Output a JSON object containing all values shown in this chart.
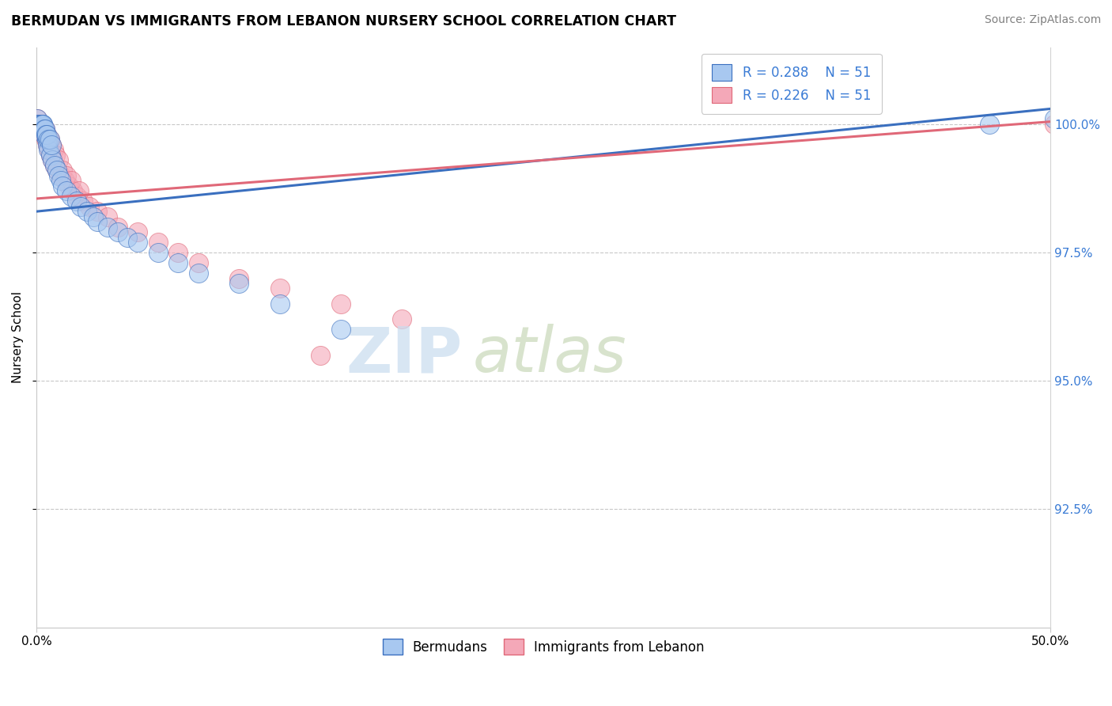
{
  "title": "BERMUDAN VS IMMIGRANTS FROM LEBANON NURSERY SCHOOL CORRELATION CHART",
  "source": "Source: ZipAtlas.com",
  "ylabel": "Nursery School",
  "ytick_values": [
    92.5,
    95.0,
    97.5,
    100.0
  ],
  "xmin": 0.0,
  "xmax": 50.0,
  "ymin": 90.2,
  "ymax": 101.5,
  "legend_r_blue": "R = 0.288",
  "legend_n_blue": "N = 51",
  "legend_r_pink": "R = 0.226",
  "legend_n_pink": "N = 51",
  "label_blue": "Bermudans",
  "label_pink": "Immigrants from Lebanon",
  "blue_color": "#A8C8F0",
  "pink_color": "#F4A8B8",
  "blue_line_color": "#3A6FBF",
  "pink_line_color": "#E06878",
  "blue_line_x0": 0.0,
  "blue_line_y0": 98.3,
  "blue_line_x1": 50.0,
  "blue_line_y1": 100.3,
  "pink_line_x0": 0.0,
  "pink_line_y0": 98.55,
  "pink_line_x1": 50.0,
  "pink_line_y1": 100.05,
  "blue_x": [
    0.1,
    0.15,
    0.2,
    0.25,
    0.3,
    0.35,
    0.4,
    0.45,
    0.5,
    0.55,
    0.6,
    0.7,
    0.8,
    0.9,
    1.0,
    1.1,
    1.2,
    1.3,
    1.5,
    1.7,
    2.0,
    2.2,
    2.5,
    2.8,
    3.0,
    3.5,
    4.0,
    4.5,
    5.0,
    6.0,
    7.0,
    8.0,
    10.0,
    12.0,
    15.0,
    0.05,
    0.08,
    0.12,
    0.18,
    0.22,
    0.28,
    0.32,
    0.38,
    0.42,
    0.48,
    0.52,
    0.58,
    0.65,
    0.75,
    47.0,
    50.2
  ],
  "blue_y": [
    100.0,
    100.0,
    100.0,
    100.0,
    100.0,
    99.9,
    99.8,
    99.8,
    99.7,
    99.6,
    99.5,
    99.4,
    99.3,
    99.2,
    99.1,
    99.0,
    98.9,
    98.8,
    98.7,
    98.6,
    98.5,
    98.4,
    98.3,
    98.2,
    98.1,
    98.0,
    97.9,
    97.8,
    97.7,
    97.5,
    97.3,
    97.1,
    96.9,
    96.5,
    96.0,
    100.1,
    100.0,
    100.0,
    100.0,
    100.0,
    100.0,
    100.0,
    99.9,
    99.9,
    99.8,
    99.8,
    99.7,
    99.7,
    99.6,
    100.0,
    100.1
  ],
  "pink_x": [
    0.1,
    0.18,
    0.25,
    0.32,
    0.4,
    0.48,
    0.55,
    0.62,
    0.7,
    0.8,
    0.9,
    1.0,
    1.2,
    1.4,
    1.6,
    1.8,
    2.0,
    2.3,
    2.6,
    3.0,
    3.5,
    4.0,
    5.0,
    6.0,
    7.0,
    8.0,
    10.0,
    12.0,
    15.0,
    18.0,
    0.05,
    0.08,
    0.12,
    0.15,
    0.22,
    0.28,
    0.35,
    0.42,
    0.52,
    0.58,
    0.65,
    0.75,
    0.85,
    0.95,
    1.1,
    1.3,
    1.5,
    1.7,
    2.1,
    50.2,
    14.0
  ],
  "pink_y": [
    100.0,
    100.0,
    100.0,
    99.9,
    99.8,
    99.7,
    99.6,
    99.5,
    99.4,
    99.3,
    99.2,
    99.1,
    99.0,
    98.9,
    98.8,
    98.7,
    98.6,
    98.5,
    98.4,
    98.3,
    98.2,
    98.0,
    97.9,
    97.7,
    97.5,
    97.3,
    97.0,
    96.8,
    96.5,
    96.2,
    100.1,
    100.0,
    100.0,
    100.0,
    100.0,
    100.0,
    99.9,
    99.9,
    99.8,
    99.7,
    99.7,
    99.6,
    99.5,
    99.4,
    99.3,
    99.1,
    99.0,
    98.9,
    98.7,
    100.0,
    95.5
  ]
}
